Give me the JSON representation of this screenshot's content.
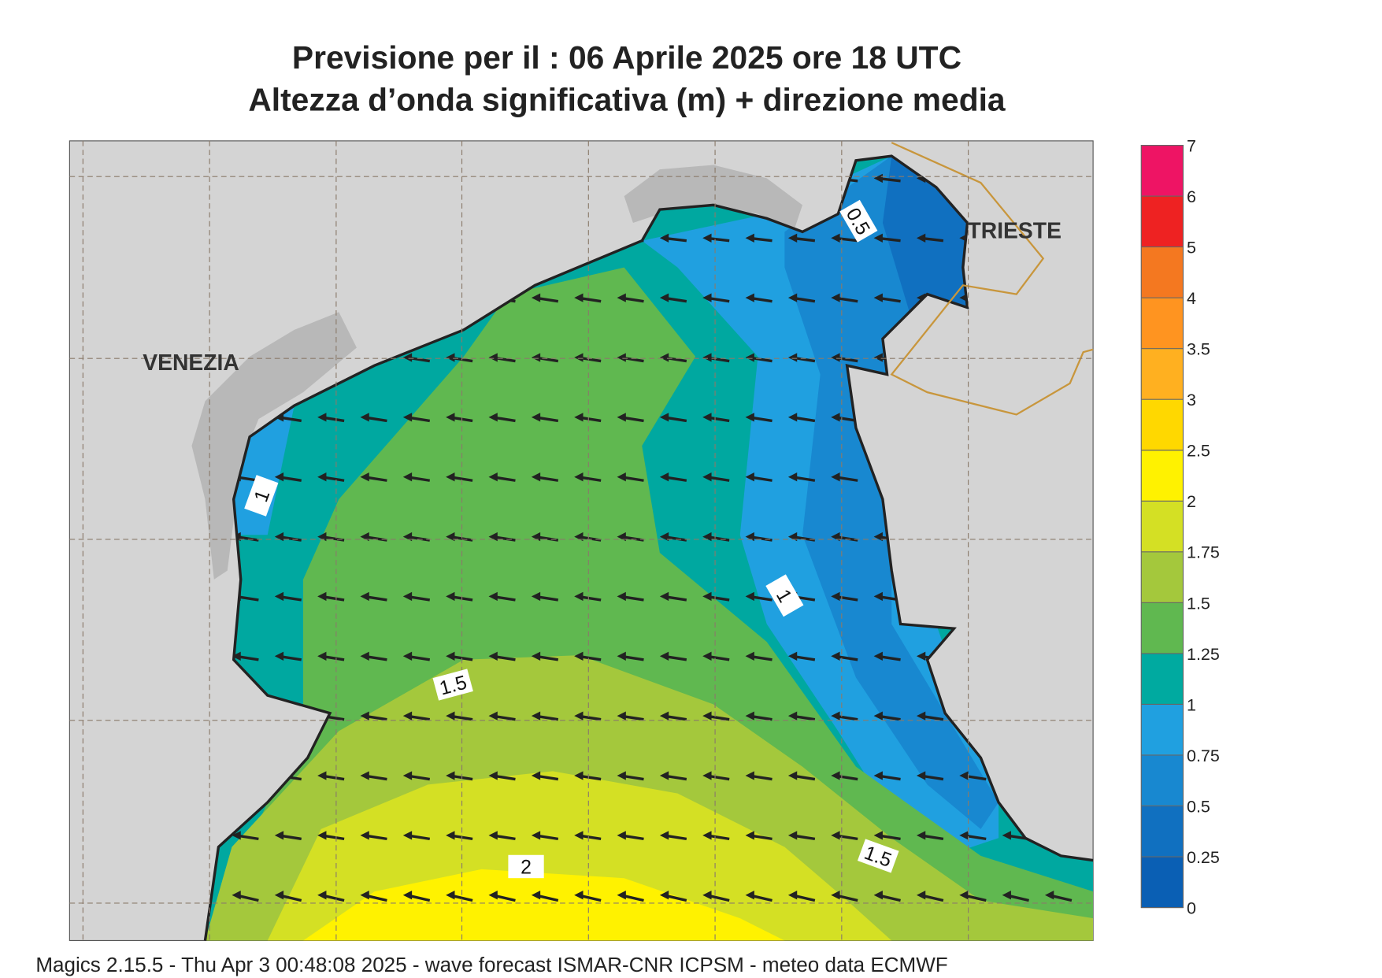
{
  "header": {
    "title": "Previsione per il  :  06   Aprile  2025   ore 18 UTC",
    "subtitle": "Altezza d’onda significativa (m) + direzione media"
  },
  "places": [
    "VENEZIA",
    "TRIESTE"
  ],
  "contour_labels": [
    0.5,
    1,
    1,
    1.5,
    1.5,
    2
  ],
  "colorbar": {
    "levels": [
      0,
      0.25,
      0.5,
      0.75,
      1,
      1.25,
      1.5,
      1.75,
      2,
      2.5,
      3,
      3.5,
      4,
      5,
      6,
      7
    ],
    "colors": [
      "#0a5fb4",
      "#1070c0",
      "#1888d0",
      "#20a0e0",
      "#00aaa0",
      "#60b850",
      "#a4c83c",
      "#d4e024",
      "#fff200",
      "#ffd800",
      "#ffb020",
      "#ff9420",
      "#f47820",
      "#ee2222",
      "#ee1464"
    ]
  },
  "footer": "Magics 2.15.5 - Thu Apr  3 00:48:08 2025 - wave forecast  ISMAR-CNR  ICPSM - meteo data   ECMWF"
}
